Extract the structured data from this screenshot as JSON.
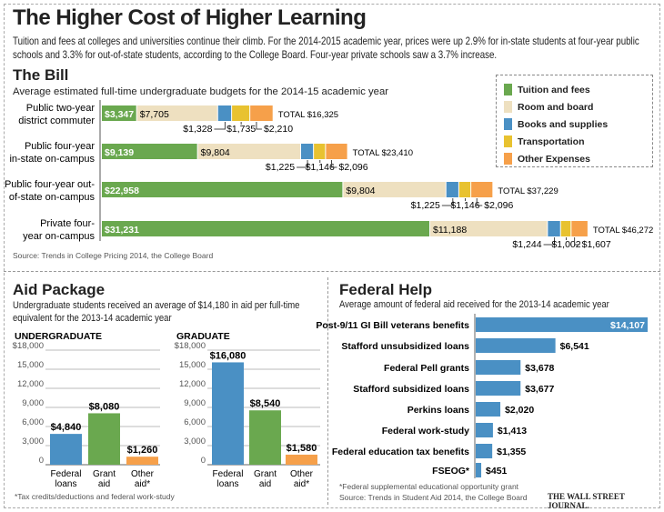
{
  "title": "The Higher Cost of Higher Learning",
  "intro": "Tuition and fees at colleges and universities continue their climb. For the 2014-2015 academic year, prices were up 2.9% for in-state students at four-year public schools and 3.3% for out-of-state students, according to the College Board. Four-year private schools saw a 3.7% increase.",
  "colors": {
    "tuition": "#6aa84f",
    "room": "#eee0c0",
    "books": "#4a90c4",
    "transport": "#e8c230",
    "other": "#f6a04a"
  },
  "bill": {
    "heading": "The Bill",
    "subtitle": "Average estimated full-time undergraduate budgets for the 2014-15 academic year",
    "source": "Source: Trends in College Pricing 2014, the College Board",
    "legend": [
      "Tuition and fees",
      "Room and board",
      "Books and supplies",
      "Transportation",
      "Other Expenses"
    ]
  },
  "aid": {
    "heading": "Aid Package",
    "subtitle": "Undergraduate students received an average of $14,180 in aid per full-time equivalent for the 2013-14 academic year",
    "footnote": "*Tax credits/deductions and federal work-study"
  },
  "federal": {
    "heading": "Federal Help",
    "subtitle": "Average amount of federal aid received for the 2013-14 academic year",
    "footnote": "*Federal supplemental educational opportunity grant",
    "source": "Source: Trends in Student Aid 2014, the College Board",
    "credit": "THE WALL STREET JOURNAL."
  },
  "chart_data": [
    {
      "type": "bar",
      "stacked": true,
      "orientation": "horizontal",
      "categories": [
        "Public two-year district commuter",
        "Public four-year in-state on-campus",
        "Public four-year out-of-state on-campus",
        "Private four-year on-campus"
      ],
      "series": [
        {
          "name": "Tuition and fees",
          "values": [
            3347,
            9139,
            22958,
            31231
          ],
          "labels": [
            "$3,347",
            "$9,139",
            "$22,958",
            "$31,231"
          ]
        },
        {
          "name": "Room and board",
          "values": [
            7705,
            9804,
            9804,
            11188
          ],
          "labels": [
            "$7,705",
            "$9,804",
            "$9,804",
            "$11,188"
          ]
        },
        {
          "name": "Books and supplies",
          "values": [
            1328,
            1225,
            1225,
            1244
          ],
          "labels": [
            "$1,328",
            "$1,225",
            "$1,225",
            "$1,244"
          ]
        },
        {
          "name": "Transportation",
          "values": [
            1735,
            1146,
            1146,
            1002
          ],
          "labels": [
            "$1,735",
            "$1,146",
            "$1,146",
            "$1,002"
          ]
        },
        {
          "name": "Other Expenses",
          "values": [
            2210,
            2096,
            2096,
            1607
          ],
          "labels": [
            "$2,210",
            "$2,096",
            "$2,096",
            "$1,607"
          ]
        }
      ],
      "totals": [
        "TOTAL $16,325",
        "TOTAL $23,410",
        "TOTAL $37,229",
        "TOTAL $46,272"
      ]
    },
    {
      "type": "bar",
      "title": "UNDERGRADUATE",
      "categories": [
        "Federal loans",
        "Grant aid",
        "Other aid*"
      ],
      "values": [
        4840,
        8080,
        1260
      ],
      "labels": [
        "$4,840",
        "$8,080",
        "$1,260"
      ],
      "ylim": [
        0,
        18000
      ],
      "yticks": [
        "$18,000",
        "15,000",
        "12,000",
        "9,000",
        "6,000",
        "3,000",
        "0"
      ],
      "grid": true
    },
    {
      "type": "bar",
      "title": "GRADUATE",
      "categories": [
        "Federal loans",
        "Grant aid",
        "Other aid*"
      ],
      "values": [
        16080,
        8540,
        1580
      ],
      "labels": [
        "$16,080",
        "$8,540",
        "$1,580"
      ],
      "ylim": [
        0,
        18000
      ],
      "yticks": [
        "$18,000",
        "15,000",
        "12,000",
        "9,000",
        "6,000",
        "3,000",
        "0"
      ],
      "grid": true
    },
    {
      "type": "bar",
      "orientation": "horizontal",
      "categories": [
        "Post-9/11 GI Bill veterans benefits",
        "Stafford unsubsidized loans",
        "Federal Pell grants",
        "Stafford subsidized loans",
        "Perkins loans",
        "Federal work-study",
        "Federal education tax benefits",
        "FSEOG*"
      ],
      "values": [
        14107,
        6541,
        3678,
        3677,
        2020,
        1413,
        1355,
        451
      ],
      "labels": [
        "$14,107",
        "$6,541",
        "$3,678",
        "$3,677",
        "$2,020",
        "$1,413",
        "$1,355",
        "$451"
      ]
    }
  ]
}
